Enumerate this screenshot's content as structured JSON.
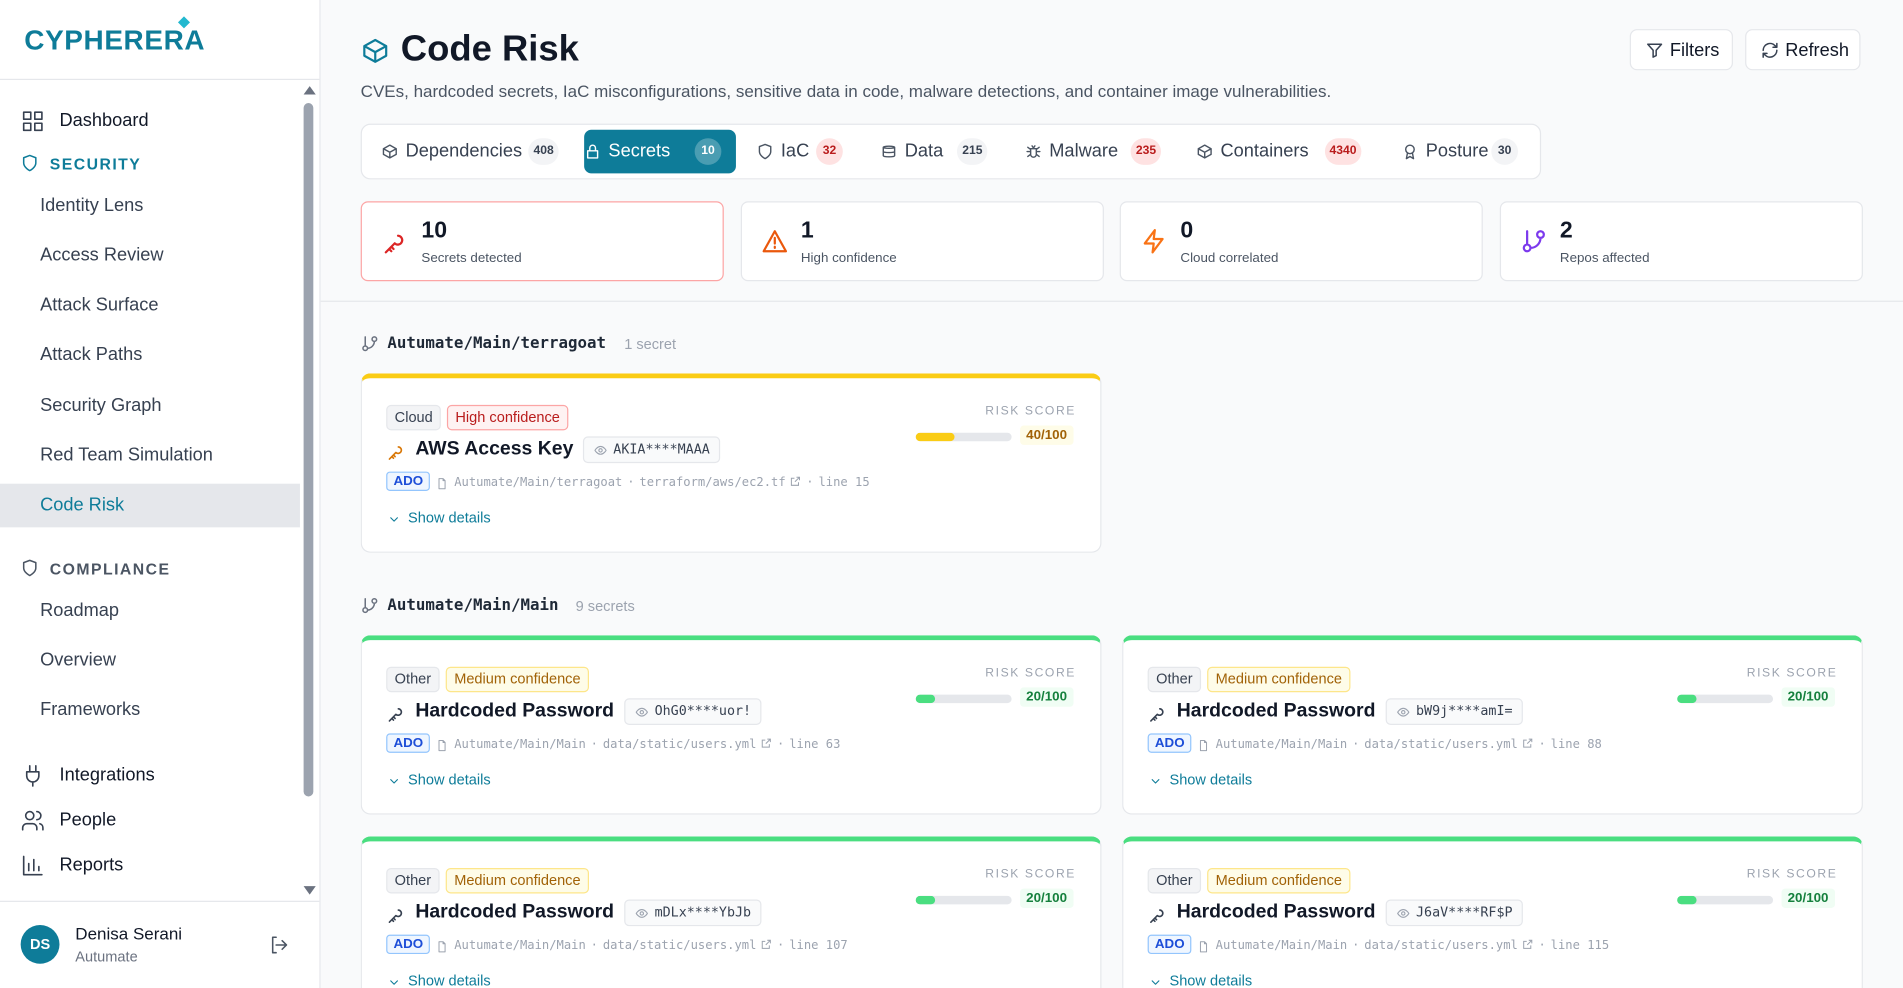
{
  "brand": "CYPHERERA",
  "nav": {
    "top": [
      "Dashboard"
    ],
    "security": {
      "title": "SECURITY",
      "items": [
        "Identity Lens",
        "Access Review",
        "Attack Surface",
        "Attack Paths",
        "Security Graph",
        "Red Team Simulation",
        "Code Risk"
      ],
      "active_index": 6
    },
    "compliance": {
      "title": "COMPLIANCE",
      "items": [
        "Roadmap",
        "Overview",
        "Frameworks"
      ]
    },
    "bottom": [
      "Integrations",
      "People",
      "Reports"
    ]
  },
  "user": {
    "initials": "DS",
    "name": "Denisa Serani",
    "org": "Autumate"
  },
  "header": {
    "title": "Code Risk",
    "subtitle": "CVEs, hardcoded secrets, IaC misconfigurations, sensitive data in code, malware detections, and container image vulnerabilities.",
    "buttons": [
      "Filters",
      "Refresh"
    ]
  },
  "tabs": [
    {
      "label": "Dependencies",
      "count": "408",
      "alert": false
    },
    {
      "label": "Secrets",
      "count": "10",
      "alert": false,
      "active": true
    },
    {
      "label": "IaC",
      "count": "32",
      "alert": true
    },
    {
      "label": "Data",
      "count": "215",
      "alert": false
    },
    {
      "label": "Malware",
      "count": "235",
      "alert": true
    },
    {
      "label": "Containers",
      "count": "4340",
      "alert": true
    },
    {
      "label": "Posture",
      "count": "30",
      "alert": false
    }
  ],
  "stats": [
    {
      "value": "10",
      "label": "Secrets detected",
      "color": "#dc2626"
    },
    {
      "value": "1",
      "label": "High confidence",
      "color": "#ea580c"
    },
    {
      "value": "0",
      "label": "Cloud correlated",
      "color": "#f97316"
    },
    {
      "value": "2",
      "label": "Repos affected",
      "color": "#7c3aed"
    }
  ],
  "risk_score_label": "RISK SCORE",
  "show_details": "Show details",
  "source": "ADO",
  "groups": [
    {
      "repo": "Autumate/Main/terragoat",
      "count_label": "1 secret",
      "cards": [
        {
          "tags": [
            {
              "text": "Cloud",
              "tone": "neutral"
            },
            {
              "text": "High confidence",
              "tone": "high"
            }
          ],
          "title": "AWS Access Key",
          "masked": "AKIA****MAAA",
          "path": "Autumate/Main/terragoat",
          "file": "terraform/aws/ec2.tf",
          "line": "line 15",
          "score": 40,
          "score_label": "40/100",
          "color": "#facc15",
          "icon_color": "#d97706"
        }
      ]
    },
    {
      "repo": "Autumate/Main/Main",
      "count_label": "9 secrets",
      "cards": [
        {
          "tags": [
            {
              "text": "Other",
              "tone": "neutral"
            },
            {
              "text": "Medium confidence",
              "tone": "medium"
            }
          ],
          "title": "Hardcoded Password",
          "masked": "OhG0****uor!",
          "path": "Autumate/Main/Main",
          "file": "data/static/users.yml",
          "line": "line 63",
          "score": 20,
          "score_label": "20/100",
          "color": "#4ade80",
          "icon_color": "#374151"
        },
        {
          "tags": [
            {
              "text": "Other",
              "tone": "neutral"
            },
            {
              "text": "Medium confidence",
              "tone": "medium"
            }
          ],
          "title": "Hardcoded Password",
          "masked": "bW9j****amI=",
          "path": "Autumate/Main/Main",
          "file": "data/static/users.yml",
          "line": "line 88",
          "score": 20,
          "score_label": "20/100",
          "color": "#4ade80",
          "icon_color": "#374151"
        },
        {
          "tags": [
            {
              "text": "Other",
              "tone": "neutral"
            },
            {
              "text": "Medium confidence",
              "tone": "medium"
            }
          ],
          "title": "Hardcoded Password",
          "masked": "mDLx****YbJb",
          "path": "Autumate/Main/Main",
          "file": "data/static/users.yml",
          "line": "line 107",
          "score": 20,
          "score_label": "20/100",
          "color": "#4ade80",
          "icon_color": "#374151"
        },
        {
          "tags": [
            {
              "text": "Other",
              "tone": "neutral"
            },
            {
              "text": "Medium confidence",
              "tone": "medium"
            }
          ],
          "title": "Hardcoded Password",
          "masked": "J6aV****RF$P",
          "path": "Autumate/Main/Main",
          "file": "data/static/users.yml",
          "line": "line 115",
          "score": 20,
          "score_label": "20/100",
          "color": "#4ade80",
          "icon_color": "#374151"
        }
      ]
    }
  ]
}
